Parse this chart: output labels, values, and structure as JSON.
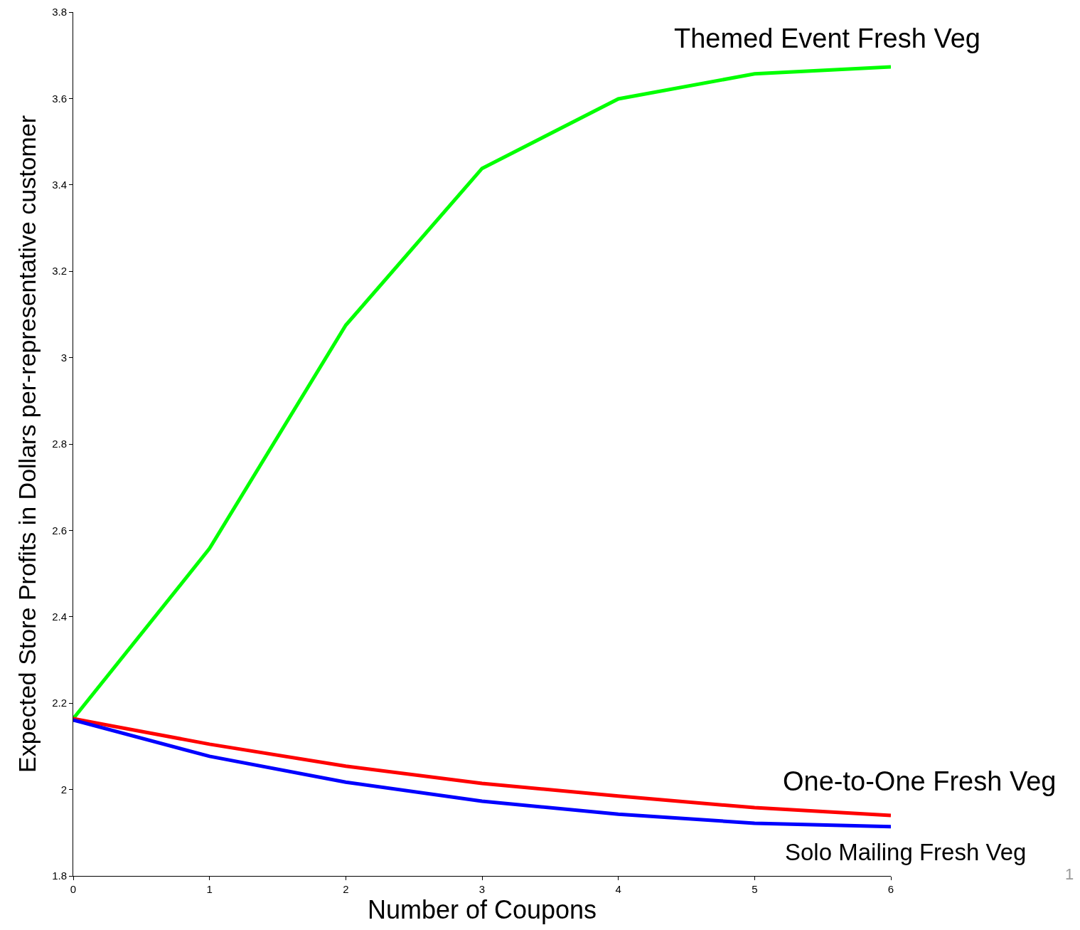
{
  "chart_data": {
    "type": "line",
    "xlabel": "Number of Coupons",
    "ylabel": "Expected Store Profits in Dollars per-representative customer",
    "x": [
      0,
      1,
      2,
      3,
      4,
      5,
      6
    ],
    "series": [
      {
        "name": "Themed Event Fresh Veg",
        "color": "#00ff00",
        "values": [
          2.164,
          2.558,
          3.075,
          3.438,
          3.599,
          3.657,
          3.673
        ]
      },
      {
        "name": "One-to-One Fresh Veg",
        "color": "#ff0000",
        "values": [
          2.164,
          2.105,
          2.054,
          2.014,
          1.985,
          1.958,
          1.94
        ]
      },
      {
        "name": "Solo Mailing Fresh Veg",
        "color": "#0000ff",
        "values": [
          2.161,
          2.077,
          2.017,
          1.973,
          1.943,
          1.922,
          1.914
        ]
      }
    ],
    "xlim": [
      0,
      6
    ],
    "xticks": [
      0,
      1,
      2,
      3,
      4,
      5,
      6
    ],
    "ylim": [
      1.8,
      3.8
    ],
    "yticks": [
      1.8,
      2,
      2.2,
      2.4,
      2.6,
      2.8,
      3,
      3.2,
      3.4,
      3.6,
      3.8
    ],
    "grid": false,
    "legend": false,
    "marker": "none",
    "line_style": "solid",
    "annotations": [
      "1"
    ]
  }
}
